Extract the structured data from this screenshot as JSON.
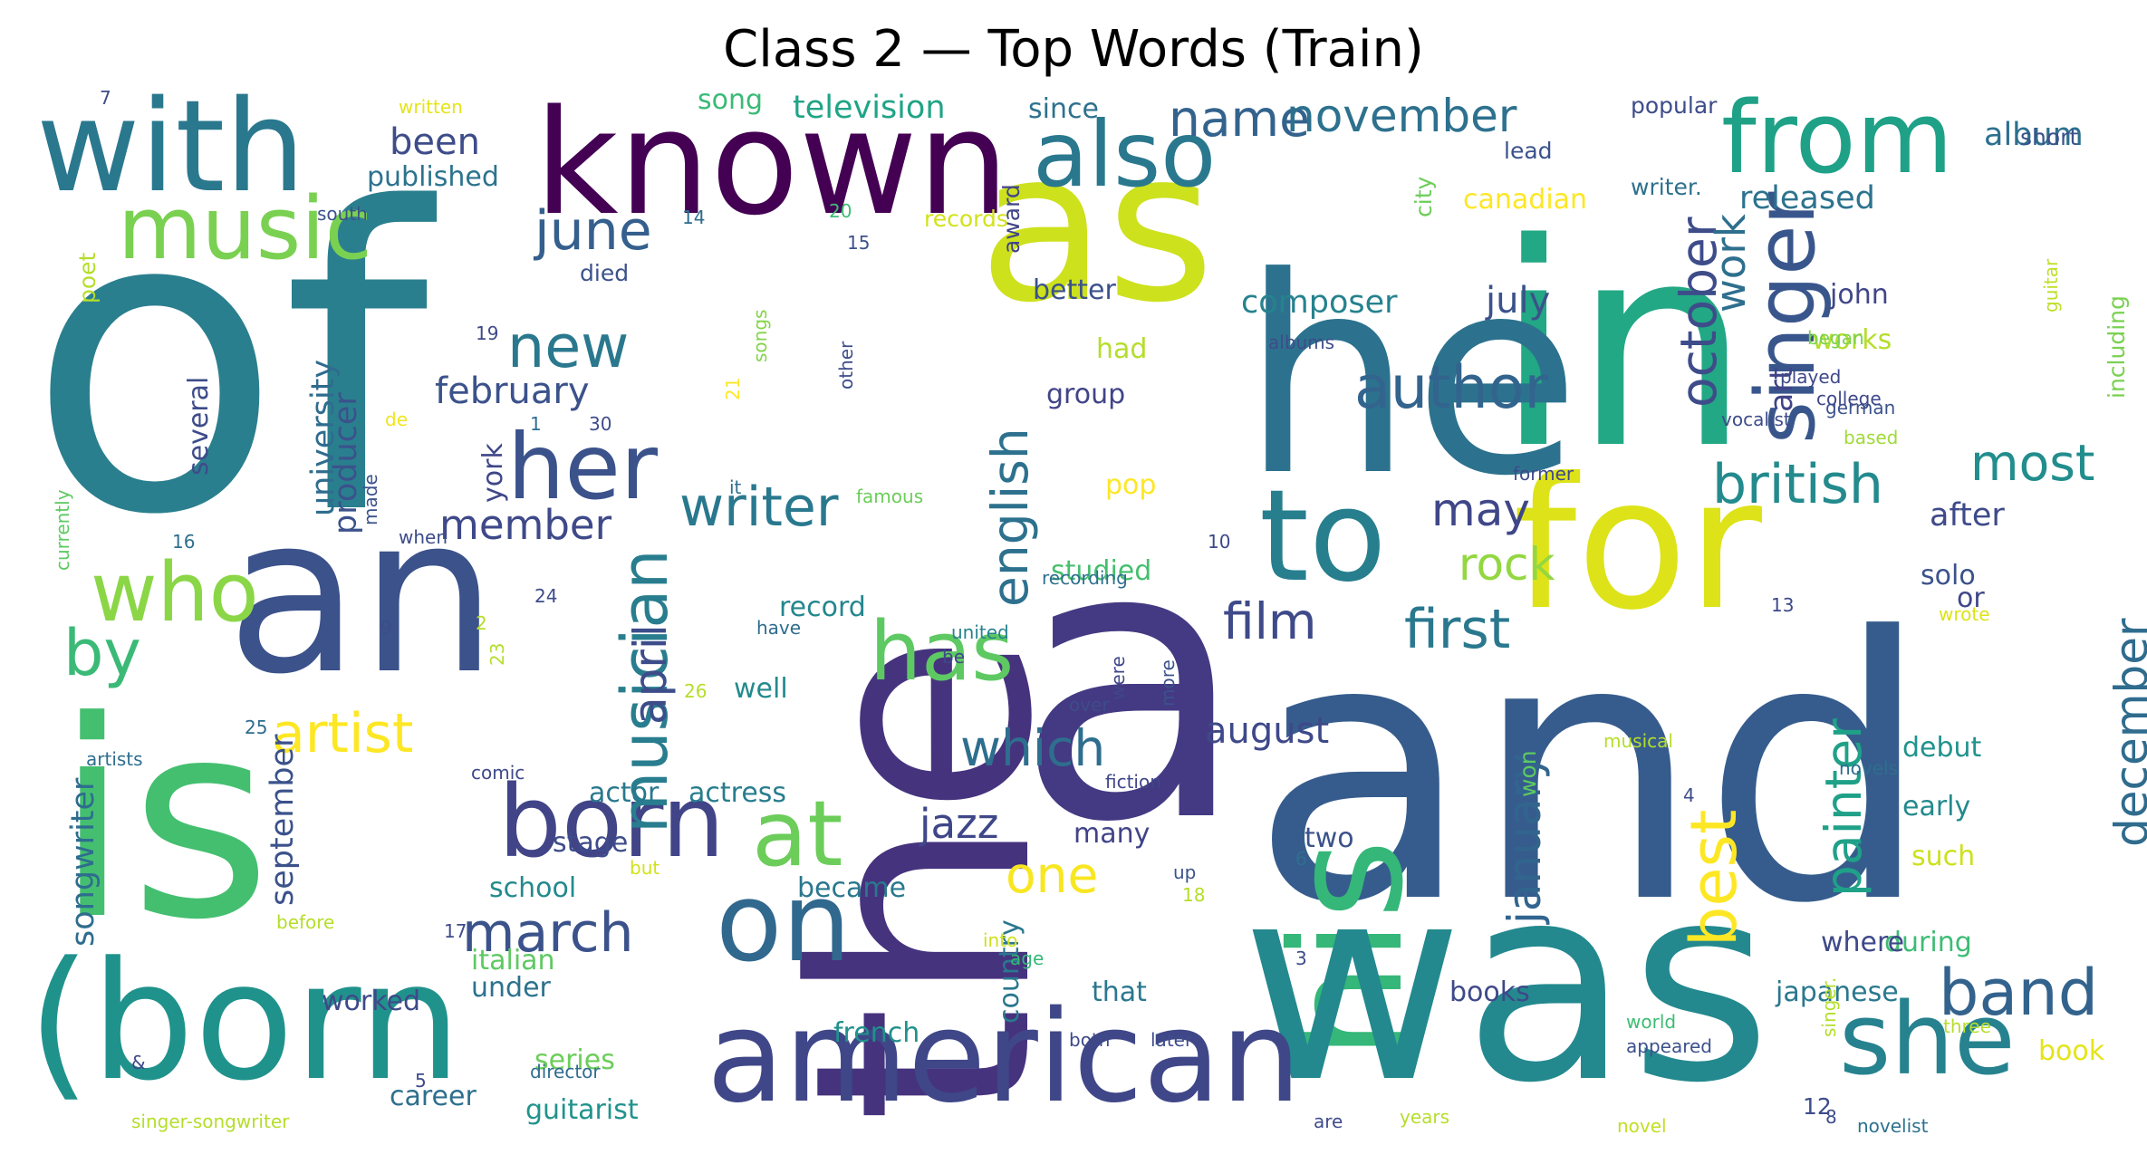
{
  "title": "Class 2 — Top Words (Train)",
  "words": [
    {
      "text": "of",
      "color": "#2a7f8e"
    },
    {
      "text": "the",
      "color": "#46337e"
    },
    {
      "text": "and",
      "color": "#365c8d"
    },
    {
      "text": "in",
      "color": "#22a884"
    },
    {
      "text": "a",
      "color": "#443a83"
    },
    {
      "text": "is",
      "color": "#44bf70"
    },
    {
      "text": "he",
      "color": "#2c728e"
    },
    {
      "text": "his",
      "color": "#35b779"
    },
    {
      "text": "was",
      "color": "#23898e"
    },
    {
      "text": "an",
      "color": "#3b528b"
    },
    {
      "text": "as",
      "color": "#cde11d"
    },
    {
      "text": "for",
      "color": "#dde318"
    },
    {
      "text": "known",
      "color": "#440154"
    },
    {
      "text": "with",
      "color": "#2a788e"
    },
    {
      "text": "(born",
      "color": "#20928c"
    },
    {
      "text": "american",
      "color": "#3f4788"
    },
    {
      "text": "to",
      "color": "#277f8e"
    },
    {
      "text": "from",
      "color": "#1fa187"
    },
    {
      "text": "also",
      "color": "#2a788e"
    },
    {
      "text": "she",
      "color": "#26828e"
    },
    {
      "text": "born",
      "color": "#414487"
    },
    {
      "text": "singer",
      "color": "#39568c"
    },
    {
      "text": "music",
      "color": "#7ad151"
    },
    {
      "text": "has",
      "color": "#5ec962"
    },
    {
      "text": "her",
      "color": "#3b528b"
    },
    {
      "text": "on",
      "color": "#31688e"
    },
    {
      "text": "at",
      "color": "#6ccd5a"
    },
    {
      "text": "who",
      "color": "#8bd646"
    },
    {
      "text": "by",
      "color": "#3aba76"
    },
    {
      "text": "new",
      "color": "#2a788e"
    },
    {
      "text": "author",
      "color": "#32648e"
    },
    {
      "text": "band",
      "color": "#33638d"
    },
    {
      "text": "musician",
      "color": "#287d8e"
    },
    {
      "text": "writer",
      "color": "#29788e"
    },
    {
      "text": "first",
      "color": "#2a788e"
    },
    {
      "text": "film",
      "color": "#3e4a89"
    },
    {
      "text": "english",
      "color": "#2d718e"
    },
    {
      "text": "name",
      "color": "#33638d"
    },
    {
      "text": "november",
      "color": "#2d718e"
    },
    {
      "text": "june",
      "color": "#355f8d"
    },
    {
      "text": "british",
      "color": "#238a8d"
    },
    {
      "text": "october",
      "color": "#3e4c8a"
    },
    {
      "text": "rock",
      "color": "#93d741"
    },
    {
      "text": "which",
      "color": "#2e6e8e"
    },
    {
      "text": "best",
      "color": "#fde725"
    },
    {
      "text": "january",
      "color": "#32658e"
    },
    {
      "text": "december",
      "color": "#2f6c8e"
    },
    {
      "text": "painter",
      "color": "#1fa188"
    },
    {
      "text": "artist",
      "color": "#fde725"
    },
    {
      "text": "march",
      "color": "#3b528b"
    },
    {
      "text": "member",
      "color": "#3e4989"
    },
    {
      "text": "most",
      "color": "#228d8d"
    },
    {
      "text": "april",
      "color": "#3d4d8a"
    },
    {
      "text": "may",
      "color": "#3f4788"
    },
    {
      "text": "one",
      "color": "#f8e621"
    },
    {
      "text": "jazz",
      "color": "#3f4788"
    },
    {
      "text": "work",
      "color": "#2e6f8e"
    },
    {
      "text": "been",
      "color": "#3e4c8a"
    },
    {
      "text": "july",
      "color": "#3b528b"
    },
    {
      "text": "february",
      "color": "#3b528b"
    },
    {
      "text": "university",
      "color": "#2f6c8e"
    },
    {
      "text": "composer",
      "color": "#26828e"
    },
    {
      "text": "producer",
      "color": "#3b528b"
    },
    {
      "text": "released",
      "color": "#2c738e"
    },
    {
      "text": "album",
      "color": "#2d708e"
    },
    {
      "text": "art",
      "color": "#414487"
    },
    {
      "text": "august",
      "color": "#3e4989"
    },
    {
      "text": "songwriter",
      "color": "#2e6d8e"
    },
    {
      "text": "september",
      "color": "#3b528b"
    },
    {
      "text": "television",
      "color": "#20a486"
    },
    {
      "text": "published",
      "color": "#2c738e"
    },
    {
      "text": "since",
      "color": "#2d718e"
    },
    {
      "text": "song",
      "color": "#3aba76"
    },
    {
      "text": "canadian",
      "color": "#fde725"
    },
    {
      "text": "after",
      "color": "#3e4a89"
    },
    {
      "text": "stage",
      "color": "#3e4c8a"
    },
    {
      "text": "actor",
      "color": "#29788e"
    },
    {
      "text": "actress",
      "color": "#287d8e"
    },
    {
      "text": "school",
      "color": "#238a8d"
    },
    {
      "text": "record",
      "color": "#24868e"
    },
    {
      "text": "became",
      "color": "#2a788e"
    },
    {
      "text": "well",
      "color": "#238a8d"
    },
    {
      "text": "studied",
      "color": "#45bf6f"
    },
    {
      "text": "pop",
      "color": "#fde725"
    },
    {
      "text": "group",
      "color": "#414487"
    },
    {
      "text": "better",
      "color": "#3b528b"
    },
    {
      "text": "had",
      "color": "#b5de2b"
    },
    {
      "text": "works",
      "color": "#b5de2b"
    },
    {
      "text": "several",
      "color": "#3e4c8a"
    },
    {
      "text": "york",
      "color": "#3f4788"
    },
    {
      "text": "two",
      "color": "#3b528b"
    },
    {
      "text": "many",
      "color": "#414487"
    },
    {
      "text": "that",
      "color": "#2a788e"
    },
    {
      "text": "italian",
      "color": "#5ec962"
    },
    {
      "text": "under",
      "color": "#2c728e"
    },
    {
      "text": "worked",
      "color": "#3e4989"
    },
    {
      "text": "guitarist",
      "color": "#20938c"
    },
    {
      "text": "career",
      "color": "#2e6f8e"
    },
    {
      "text": "series",
      "color": "#6ccd5a"
    },
    {
      "text": "french",
      "color": "#21918c"
    },
    {
      "text": "country",
      "color": "#2a788e"
    },
    {
      "text": "debut",
      "color": "#20938c"
    },
    {
      "text": "early",
      "color": "#238a8d"
    },
    {
      "text": "such",
      "color": "#cde11d"
    },
    {
      "text": "during",
      "color": "#3dbc74"
    },
    {
      "text": "japanese",
      "color": "#2a788e"
    },
    {
      "text": "where",
      "color": "#3e4989"
    },
    {
      "text": "books",
      "color": "#3e4989"
    },
    {
      "text": "book",
      "color": "#e5e419"
    },
    {
      "text": "solo",
      "color": "#3b528b"
    },
    {
      "text": "or",
      "color": "#3f4788"
    },
    {
      "text": "john",
      "color": "#404688"
    },
    {
      "text": "including",
      "color": "#7ad151"
    },
    {
      "text": "won",
      "color": "#5ec962"
    },
    {
      "text": "award",
      "color": "#414487"
    },
    {
      "text": "written",
      "color": "#e5e419"
    },
    {
      "text": "popular",
      "color": "#3e4c8a"
    },
    {
      "text": "short",
      "color": "#3b528b"
    },
    {
      "text": "lead",
      "color": "#3b528b"
    },
    {
      "text": "writer.",
      "color": "#2d708e"
    },
    {
      "text": "city",
      "color": "#6ccd5a"
    },
    {
      "text": "guitar",
      "color": "#bddf26"
    },
    {
      "text": "south",
      "color": "#3b528b"
    },
    {
      "text": "poet",
      "color": "#b5de2b"
    },
    {
      "text": "died",
      "color": "#3b528b"
    },
    {
      "text": "records",
      "color": "#d2e21b"
    },
    {
      "text": "songs",
      "color": "#84d44b"
    },
    {
      "text": "other",
      "color": "#3e4c8a"
    },
    {
      "text": "albums",
      "color": "#3e4c8a"
    },
    {
      "text": "began",
      "color": "#7ad151"
    },
    {
      "text": "played",
      "color": "#3e4989"
    },
    {
      "text": "german",
      "color": "#3b528b"
    },
    {
      "text": "college",
      "color": "#3e4989"
    },
    {
      "text": "vocalist",
      "color": "#3e4c8a"
    },
    {
      "text": "based",
      "color": "#a0da39"
    },
    {
      "text": "former",
      "color": "#3e4989"
    },
    {
      "text": "de",
      "color": "#f1e51d"
    },
    {
      "text": "made",
      "color": "#3b528b"
    },
    {
      "text": "it",
      "color": "#2e6e8e"
    },
    {
      "text": "famous",
      "color": "#6ccd5a"
    },
    {
      "text": "when",
      "color": "#3e4c8a"
    },
    {
      "text": "recording",
      "color": "#2e6f8e"
    },
    {
      "text": "currently",
      "color": "#5ec962"
    },
    {
      "text": "have",
      "color": "#2f6c8e"
    },
    {
      "text": "united",
      "color": "#26828e"
    },
    {
      "text": "be",
      "color": "#3e4989"
    },
    {
      "text": "wrote",
      "color": "#dde318"
    },
    {
      "text": "over",
      "color": "#3e4c8a"
    },
    {
      "text": "were",
      "color": "#404688"
    },
    {
      "text": "more",
      "color": "#3b528b"
    },
    {
      "text": "comic",
      "color": "#3e4989"
    },
    {
      "text": "fiction",
      "color": "#404688"
    },
    {
      "text": "musical",
      "color": "#b5de2b"
    },
    {
      "text": "novels",
      "color": "#2e6e8e"
    },
    {
      "text": "artists",
      "color": "#2e6e8e"
    },
    {
      "text": "but",
      "color": "#d2e21b"
    },
    {
      "text": "before",
      "color": "#b5de2b"
    },
    {
      "text": "up",
      "color": "#3b528b"
    },
    {
      "text": "into",
      "color": "#cde11d"
    },
    {
      "text": "age",
      "color": "#35b779"
    },
    {
      "text": "both",
      "color": "#3e4989"
    },
    {
      "text": "later",
      "color": "#3e4c8a"
    },
    {
      "text": "world",
      "color": "#3dbc74"
    },
    {
      "text": "appeared",
      "color": "#3b528b"
    },
    {
      "text": "three",
      "color": "#b5de2b"
    },
    {
      "text": "director",
      "color": "#2f6c8e"
    },
    {
      "text": "singer-songwriter",
      "color": "#b5de2b"
    },
    {
      "text": "are",
      "color": "#3e4c8a"
    },
    {
      "text": "years",
      "color": "#b5de2b"
    },
    {
      "text": "novel",
      "color": "#c2df23"
    },
    {
      "text": "novelist",
      "color": "#2c728e"
    },
    {
      "text": "singer.",
      "color": "#b5de2b"
    },
    {
      "text": "&",
      "color": "#3e4989"
    },
    {
      "text": "7",
      "color": "#3e4c8a"
    },
    {
      "text": "14",
      "color": "#2f6c8e"
    },
    {
      "text": "20",
      "color": "#3dbc74"
    },
    {
      "text": "15",
      "color": "#3b528b"
    },
    {
      "text": "19",
      "color": "#3e4989"
    },
    {
      "text": "1",
      "color": "#2e6e8e"
    },
    {
      "text": "30",
      "color": "#3e4c8a"
    },
    {
      "text": "21",
      "color": "#fde725"
    },
    {
      "text": "16",
      "color": "#2e6f8e"
    },
    {
      "text": "10",
      "color": "#3e4989"
    },
    {
      "text": "24",
      "color": "#3e4c8a"
    },
    {
      "text": "9",
      "color": "#3e4c8a"
    },
    {
      "text": "2",
      "color": "#b5de2b"
    },
    {
      "text": "23",
      "color": "#b5de2b"
    },
    {
      "text": "26",
      "color": "#b5de2b"
    },
    {
      "text": "25",
      "color": "#2f6c8e"
    },
    {
      "text": "13",
      "color": "#3e4989"
    },
    {
      "text": "4",
      "color": "#3e4c8a"
    },
    {
      "text": "6",
      "color": "#2e6f8e"
    },
    {
      "text": "18",
      "color": "#b5de2b"
    },
    {
      "text": "17",
      "color": "#3e4c8a"
    },
    {
      "text": "5",
      "color": "#3e4989"
    },
    {
      "text": "3",
      "color": "#3e4c8a"
    },
    {
      "text": "8",
      "color": "#3e4c8a"
    },
    {
      "text": "12",
      "color": "#3e4c8a"
    },
    {
      "text": "-",
      "color": "#3e4c8a"
    }
  ]
}
